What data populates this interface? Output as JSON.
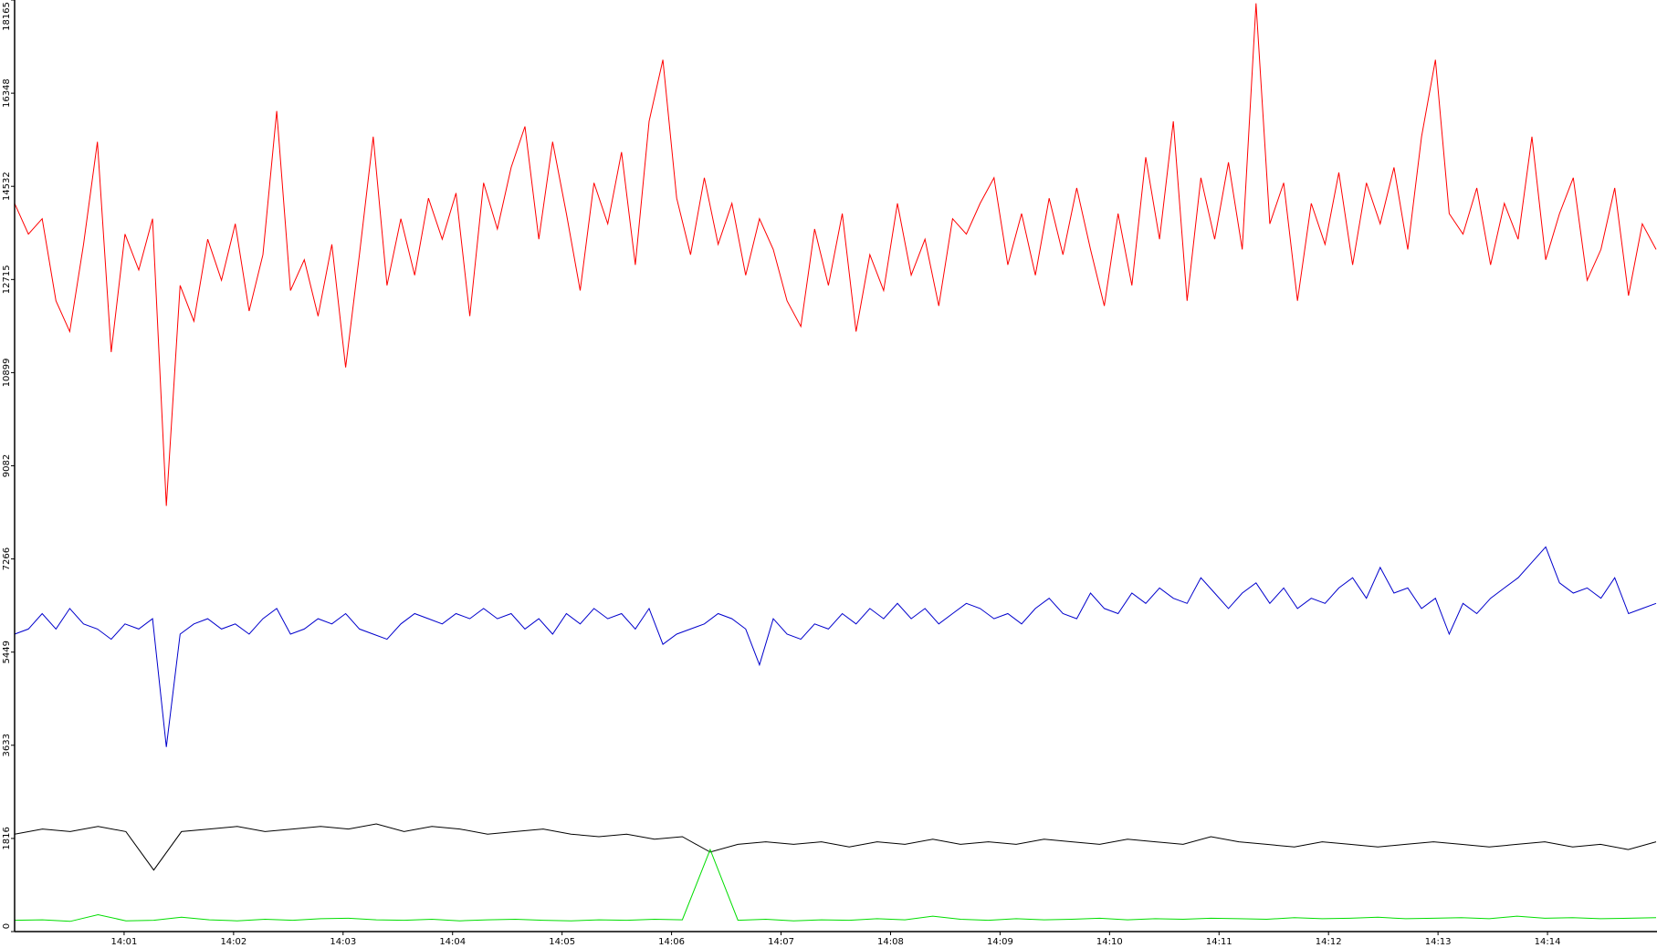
{
  "chart_data": {
    "type": "line",
    "xlim": [
      "14:00",
      "14:15"
    ],
    "xticks": [
      "14:01",
      "14:02",
      "14:03",
      "14:04",
      "14:05",
      "14:06",
      "14:07",
      "14:08",
      "14:09",
      "14:10",
      "14:11",
      "14:12",
      "14:13",
      "14:14"
    ],
    "ylim": [
      0,
      18165
    ],
    "yticks": [
      0,
      1816,
      3633,
      5449,
      7266,
      9082,
      10899,
      12715,
      14532,
      16348,
      18165
    ],
    "series": [
      {
        "color": "#ff0000",
        "values": [
          14200,
          13600,
          13900,
          12300,
          11700,
          13400,
          15400,
          11300,
          13600,
          12900,
          13900,
          8300,
          12600,
          11900,
          13500,
          12700,
          13800,
          12100,
          13200,
          16000,
          12500,
          13100,
          12000,
          13400,
          11000,
          13200,
          15500,
          12600,
          13900,
          12800,
          14300,
          13500,
          14400,
          12000,
          14600,
          13700,
          14900,
          15700,
          13500,
          15400,
          14000,
          12500,
          14600,
          13800,
          15200,
          13000,
          15800,
          17000,
          14300,
          13200,
          14700,
          13400,
          14200,
          12800,
          13900,
          13300,
          12300,
          11800,
          13700,
          12600,
          14000,
          11700,
          13200,
          12500,
          14200,
          12800,
          13500,
          12200,
          13900,
          13600,
          14200,
          14700,
          13000,
          14000,
          12800,
          14300,
          13200,
          14500,
          13300,
          12200,
          14000,
          12600,
          15100,
          13500,
          15800,
          12300,
          14700,
          13500,
          15000,
          13300,
          18100,
          13800,
          14600,
          12300,
          14200,
          13400,
          14800,
          13000,
          14600,
          13800,
          14900,
          13300,
          15500,
          17000,
          14000,
          13600,
          14500,
          13000,
          14200,
          13500,
          15500,
          13100,
          14000,
          14700,
          12700,
          13300,
          14500,
          12400,
          13800,
          13300
        ]
      },
      {
        "color": "#0000cc",
        "values": [
          5800,
          5900,
          6200,
          5900,
          6300,
          6000,
          5900,
          5700,
          6000,
          5900,
          6100,
          3600,
          5800,
          6000,
          6100,
          5900,
          6000,
          5800,
          6100,
          6300,
          5800,
          5900,
          6100,
          6000,
          6200,
          5900,
          5800,
          5700,
          6000,
          6200,
          6100,
          6000,
          6200,
          6100,
          6300,
          6100,
          6200,
          5900,
          6100,
          5800,
          6200,
          6000,
          6300,
          6100,
          6200,
          5900,
          6300,
          5600,
          5800,
          5900,
          6000,
          6200,
          6100,
          5900,
          5200,
          6100,
          5800,
          5700,
          6000,
          5900,
          6200,
          6000,
          6300,
          6100,
          6400,
          6100,
          6300,
          6000,
          6200,
          6400,
          6300,
          6100,
          6200,
          6000,
          6300,
          6500,
          6200,
          6100,
          6600,
          6300,
          6200,
          6600,
          6400,
          6700,
          6500,
          6400,
          6900,
          6600,
          6300,
          6600,
          6800,
          6400,
          6700,
          6300,
          6500,
          6400,
          6700,
          6900,
          6500,
          7100,
          6600,
          6700,
          6300,
          6500,
          5800,
          6400,
          6200,
          6500,
          6700,
          6900,
          7200,
          7500,
          6800,
          6600,
          6700,
          6500,
          6900,
          6200,
          6300,
          6400
        ]
      },
      {
        "color": "#000000",
        "values": [
          1900,
          2000,
          1950,
          2050,
          1950,
          1200,
          1950,
          2000,
          2050,
          1950,
          2000,
          2050,
          2000,
          2100,
          1950,
          2050,
          2000,
          1900,
          1950,
          2000,
          1900,
          1850,
          1900,
          1800,
          1850,
          1550,
          1700,
          1750,
          1700,
          1750,
          1650,
          1750,
          1700,
          1800,
          1700,
          1750,
          1700,
          1800,
          1750,
          1700,
          1800,
          1750,
          1700,
          1850,
          1750,
          1700,
          1650,
          1750,
          1700,
          1650,
          1700,
          1750,
          1700,
          1650,
          1700,
          1750,
          1650,
          1700,
          1600,
          1750
        ]
      },
      {
        "color": "#00dd00",
        "values": [
          220,
          230,
          200,
          330,
          210,
          220,
          280,
          230,
          210,
          240,
          220,
          250,
          260,
          230,
          220,
          240,
          210,
          230,
          240,
          220,
          210,
          230,
          220,
          240,
          230,
          1600,
          220,
          240,
          210,
          230,
          220,
          250,
          230,
          300,
          240,
          220,
          250,
          230,
          240,
          260,
          230,
          250,
          240,
          260,
          250,
          240,
          270,
          250,
          260,
          280,
          250,
          260,
          270,
          250,
          300,
          260,
          270,
          250,
          260,
          270
        ]
      }
    ]
  }
}
